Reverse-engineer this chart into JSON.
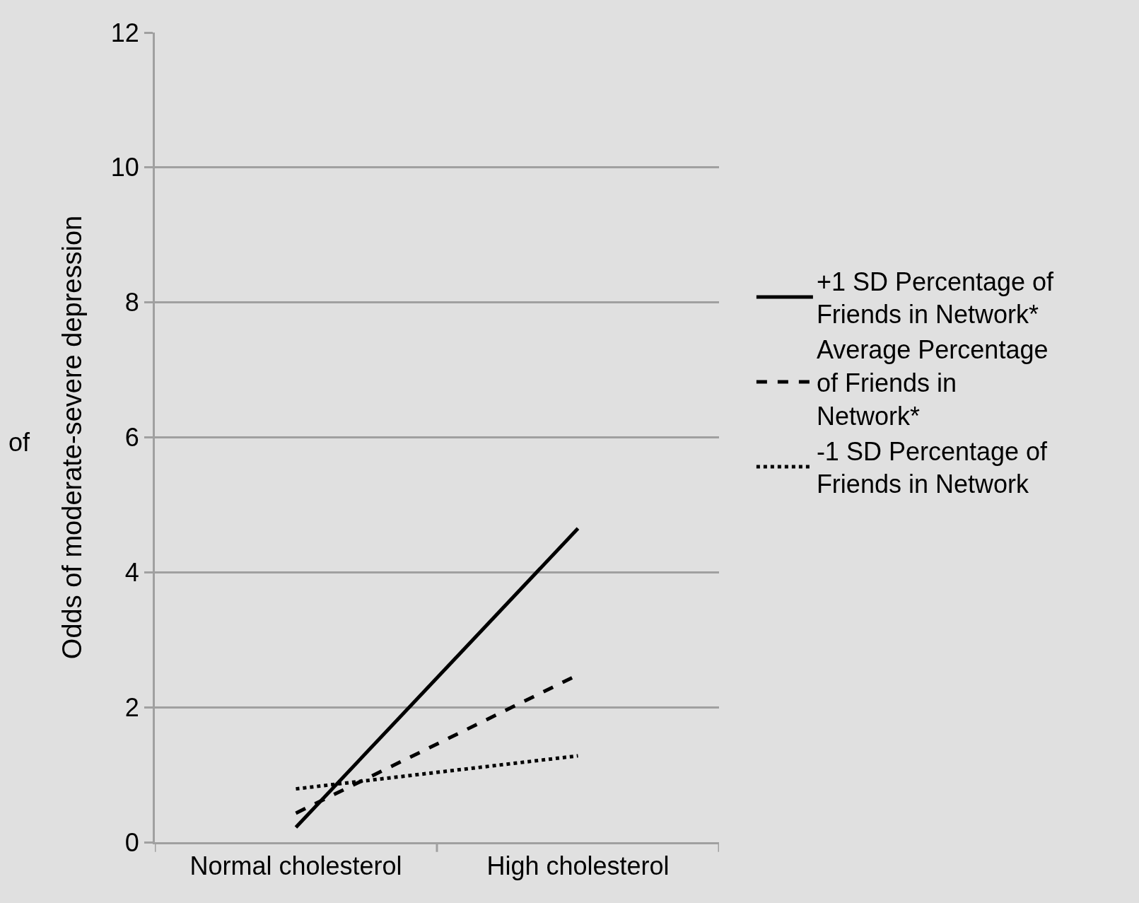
{
  "chart_data": {
    "type": "line",
    "ylabel": "Odds of moderate-severe depression",
    "categories": [
      "Normal cholesterol",
      "High cholesterol"
    ],
    "ylim": [
      0,
      12
    ],
    "yticks": [
      0,
      2,
      4,
      6,
      8,
      10,
      12
    ],
    "grid": "y",
    "legend": "right",
    "marker": "none",
    "annotations": [
      "of"
    ],
    "series": [
      {
        "name": "+1 SD Percentage of Friends in Network*",
        "color": "#000000",
        "line_style": "solid",
        "values": [
          0.22,
          4.65
        ]
      },
      {
        "name": "Average Percentage of Friends in Network*",
        "color": "#000000",
        "line_style": "dashed",
        "values": [
          0.43,
          2.48
        ]
      },
      {
        "name": "-1 SD Percentage of Friends in Network",
        "color": "#000000",
        "line_style": "dotted",
        "values": [
          0.79,
          1.28
        ]
      }
    ]
  }
}
